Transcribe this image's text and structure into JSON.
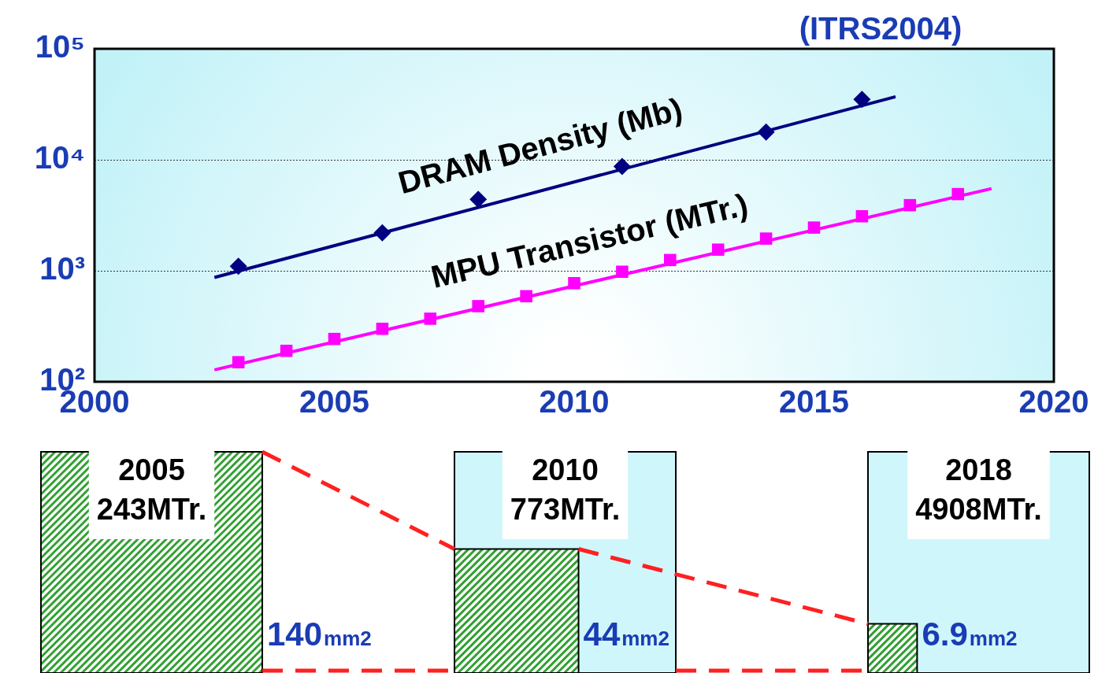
{
  "chart_data": [
    {
      "type": "scatter",
      "title": "(ITRS2004)",
      "xlim": [
        2000,
        2020
      ],
      "xticks": [
        2000,
        2005,
        2010,
        2015,
        2020
      ],
      "ylim": [
        100,
        100000
      ],
      "yticks": [
        {
          "value": 100,
          "label": "10²"
        },
        {
          "value": 1000,
          "label": "10³"
        },
        {
          "value": 10000,
          "label": "10⁴"
        },
        {
          "value": 100000,
          "label": "10⁵"
        }
      ],
      "log": "y",
      "grid": "y",
      "series": [
        {
          "name": "DRAM Density (Mb)",
          "type": "scatter",
          "marker": "diamond",
          "color": "#000080",
          "x": [
            2003,
            2006,
            2008,
            2011,
            2014,
            2016
          ],
          "values": [
            1100,
            2200,
            4400,
            8700,
            17800,
            35000
          ]
        },
        {
          "type": "line",
          "marker": "none",
          "color": "#000080",
          "x": [
            2002.5,
            2016.7
          ],
          "values": [
            870,
            37000
          ]
        },
        {
          "name": "MPU Transistor (MTr.)",
          "type": "scatter",
          "marker": "square",
          "color": "#ff00ff",
          "x": [
            2003,
            2004,
            2005,
            2006,
            2007,
            2008,
            2009,
            2010,
            2011,
            2012,
            2013,
            2014,
            2015,
            2016,
            2017,
            2018
          ],
          "values": [
            150,
            190,
            243,
            300,
            370,
            480,
            590,
            773,
            980,
            1250,
            1550,
            1950,
            2450,
            3100,
            3900,
            4908
          ]
        },
        {
          "type": "line",
          "marker": "none",
          "color": "#ff00ff",
          "x": [
            2002.5,
            2018.7
          ],
          "values": [
            128,
            5500
          ]
        }
      ]
    },
    {
      "type": "other",
      "categories": [
        "2005",
        "2010",
        "2018"
      ],
      "values": [
        140,
        44,
        6.9
      ],
      "value_labels": [
        "140mm2",
        "44mm2",
        "6.9mm2"
      ],
      "annotations": [
        "243MTr.",
        "773MTr.",
        "4908MTr."
      ]
    }
  ]
}
